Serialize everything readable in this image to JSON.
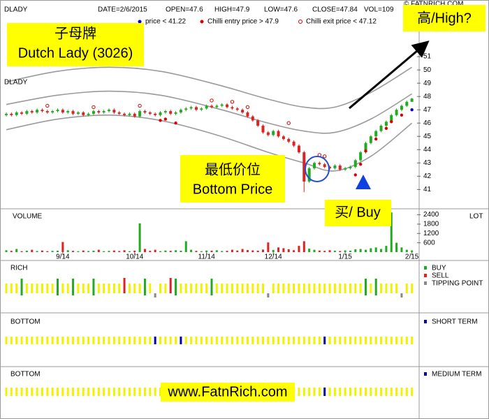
{
  "chart_data": {
    "type": "candlestick",
    "symbol": "DLADY",
    "symbol_label": "DLADY",
    "date": "DATE=2/6/2015",
    "open_label": "OPEN=47.6",
    "high_label": "HIGH=47.9",
    "low_label": "LOW=47.6",
    "close_label": "CLOSE=47.84",
    "vol_label": "VOL=109",
    "copyright": "© FATNRICH.COM",
    "annotations": {
      "name_cn": "子母牌",
      "name_en": "Dutch Lady (3026)",
      "high": "高/High?",
      "bottom_cn": "最低价位",
      "bottom_en": "Bottom Price",
      "buy": "买/ Buy",
      "website": "www.FatnRich.com"
    },
    "categories": [
      null,
      null,
      null,
      null,
      null,
      null,
      null,
      null,
      null,
      null,
      null,
      "9/14",
      null,
      null,
      null,
      null,
      null,
      null,
      null,
      null,
      null,
      null,
      null,
      null,
      null,
      "10/14",
      null,
      null,
      null,
      null,
      null,
      null,
      null,
      null,
      null,
      null,
      null,
      null,
      null,
      "11/14",
      null,
      null,
      null,
      null,
      null,
      null,
      null,
      null,
      null,
      null,
      null,
      null,
      "12/14",
      null,
      null,
      null,
      null,
      null,
      null,
      null,
      null,
      null,
      null,
      null,
      null,
      null,
      "1/15",
      null,
      null,
      null,
      null,
      null,
      null,
      null,
      null,
      null,
      null,
      null,
      null,
      "2/15"
    ],
    "open": [
      46.6,
      46.7,
      46.6,
      46.8,
      46.7,
      46.9,
      46.8,
      47.0,
      46.9,
      46.8,
      46.9,
      47.0,
      46.8,
      46.9,
      46.7,
      46.8,
      46.6,
      46.7,
      46.9,
      46.8,
      46.9,
      47.0,
      46.8,
      46.7,
      46.6,
      46.7,
      46.5,
      46.9,
      46.8,
      46.7,
      46.6,
      46.8,
      46.9,
      46.7,
      46.8,
      47.0,
      47.1,
      47.2,
      47.0,
      47.1,
      47.3,
      47.2,
      47.3,
      47.4,
      47.2,
      47.1,
      47.0,
      46.8,
      46.5,
      46.2,
      45.8,
      45.3,
      45.1,
      45.4,
      45.0,
      44.8,
      44.6,
      44.3,
      43.8,
      41.6,
      42.6,
      43.0,
      42.9,
      42.7,
      42.6,
      42.8,
      42.5,
      42.6,
      42.7,
      43.2,
      43.8,
      44.5,
      45.0,
      45.4,
      45.8,
      46.1,
      46.6,
      47.0,
      47.3,
      47.6
    ],
    "high": [
      46.8,
      46.8,
      46.9,
      46.9,
      47.0,
      47.0,
      47.1,
      47.1,
      47.0,
      47.0,
      47.1,
      47.1,
      47.0,
      47.0,
      46.9,
      46.9,
      46.8,
      47.0,
      47.0,
      47.0,
      47.1,
      47.1,
      46.9,
      46.8,
      46.8,
      46.8,
      47.0,
      47.0,
      46.9,
      46.8,
      46.9,
      47.0,
      47.0,
      46.9,
      47.1,
      47.2,
      47.3,
      47.3,
      47.2,
      47.4,
      47.4,
      47.4,
      47.5,
      47.5,
      47.3,
      47.2,
      47.1,
      46.9,
      46.6,
      46.3,
      45.9,
      45.4,
      45.5,
      45.5,
      45.1,
      44.9,
      44.7,
      44.4,
      43.9,
      42.7,
      43.1,
      43.1,
      43.0,
      42.8,
      42.9,
      42.9,
      42.7,
      42.8,
      43.3,
      43.9,
      44.6,
      45.1,
      45.5,
      45.9,
      46.2,
      46.7,
      47.1,
      47.4,
      47.7,
      47.9
    ],
    "low": [
      46.5,
      46.5,
      46.5,
      46.6,
      46.6,
      46.7,
      46.7,
      46.8,
      46.7,
      46.7,
      46.8,
      46.7,
      46.7,
      46.6,
      46.6,
      46.5,
      46.5,
      46.6,
      46.7,
      46.7,
      46.8,
      46.7,
      46.6,
      46.5,
      46.5,
      46.4,
      46.4,
      46.7,
      46.6,
      46.5,
      46.5,
      46.7,
      46.6,
      46.6,
      46.7,
      46.9,
      47.0,
      46.9,
      46.9,
      47.0,
      47.1,
      47.1,
      47.2,
      47.1,
      47.0,
      46.9,
      46.7,
      46.4,
      46.1,
      45.7,
      45.2,
      45.0,
      45.0,
      44.9,
      44.7,
      44.5,
      44.2,
      43.7,
      40.8,
      41.5,
      42.5,
      42.8,
      42.6,
      42.5,
      42.5,
      42.4,
      42.4,
      42.5,
      42.6,
      43.1,
      43.7,
      44.4,
      44.9,
      45.3,
      45.7,
      46.0,
      46.5,
      46.9,
      47.2,
      47.6
    ],
    "close": [
      46.7,
      46.6,
      46.8,
      46.7,
      46.9,
      46.8,
      47.0,
      46.9,
      46.8,
      46.9,
      47.0,
      46.8,
      46.9,
      46.7,
      46.8,
      46.6,
      46.7,
      46.9,
      46.8,
      46.9,
      47.0,
      46.8,
      46.7,
      46.6,
      46.7,
      46.5,
      46.9,
      46.8,
      46.7,
      46.6,
      46.8,
      46.9,
      46.7,
      46.8,
      47.0,
      47.1,
      47.2,
      47.0,
      47.1,
      47.3,
      47.2,
      47.3,
      47.4,
      47.2,
      47.1,
      47.0,
      46.8,
      46.5,
      46.2,
      45.8,
      45.3,
      45.1,
      45.4,
      45.0,
      44.8,
      44.6,
      44.3,
      43.8,
      41.6,
      42.6,
      43.0,
      42.9,
      42.7,
      42.6,
      42.8,
      42.5,
      42.6,
      42.7,
      43.2,
      43.8,
      44.5,
      45.0,
      45.4,
      45.8,
      46.1,
      46.6,
      47.0,
      47.3,
      47.6,
      47.84
    ],
    "up_color": "#22aa22",
    "down_color": "#dd2222",
    "flat_color": "#000000",
    "ylim": [
      39.6,
      55
    ],
    "yticks": [
      41,
      42,
      43,
      44,
      45,
      46,
      47,
      48,
      49,
      50,
      51
    ],
    "bands": [
      {
        "color": "#9a9a9a",
        "x": [
          0,
          10,
          20,
          30,
          41,
          51,
          58,
          64,
          71,
          79
        ],
        "values": [
          49.1,
          49.9,
          50.2,
          49.9,
          48.9,
          47.8,
          47.2,
          47.2,
          48.3,
          50.2
        ]
      },
      {
        "color": "#9a9a9a",
        "x": [
          0,
          10,
          20,
          30,
          41,
          51,
          58,
          64,
          71,
          79
        ],
        "values": [
          47.4,
          48.1,
          48.4,
          48.1,
          47.1,
          46.0,
          45.4,
          45.3,
          46.3,
          48.2
        ]
      },
      {
        "color": "#9a9a9a",
        "x": [
          0,
          10,
          20,
          30,
          41,
          51,
          58,
          64,
          71,
          79
        ],
        "values": [
          45.5,
          46.3,
          46.6,
          46.2,
          45.1,
          43.8,
          43.0,
          42.4,
          43.5,
          46.0
        ]
      }
    ],
    "markers": [
      {
        "name": "price < 41.22",
        "color": "#0000cc",
        "style": "dot",
        "x": [
          79
        ],
        "values": [
          47.0
        ]
      },
      {
        "name": "Chilli entry price > 47.9",
        "color": "#dd0000",
        "style": "dot",
        "x": [
          30,
          31,
          33,
          68,
          69,
          70,
          72,
          74,
          75,
          77
        ],
        "values": [
          46.2,
          46.3,
          46.0,
          42.1,
          42.9,
          43.9,
          44.8,
          45.6,
          46.1,
          46.6
        ]
      },
      {
        "name": "Chilli exit price < 47.12",
        "color": "#dd0000",
        "style": "circle",
        "x": [
          8,
          17,
          26,
          40,
          44,
          47,
          55,
          61,
          62
        ],
        "values": [
          47.3,
          47.2,
          47.3,
          47.7,
          47.6,
          47.2,
          46.0,
          43.6,
          43.5
        ]
      }
    ],
    "volume": {
      "label": "VOLUME",
      "unit_label": "LOT",
      "values": [
        120,
        80,
        200,
        60,
        90,
        150,
        70,
        100,
        60,
        80,
        90,
        650,
        120,
        80,
        60,
        100,
        70,
        90,
        150,
        60,
        80,
        100,
        70,
        120,
        60,
        90,
        1850,
        200,
        80,
        150,
        60,
        100,
        80,
        120,
        90,
        700,
        150,
        80,
        60,
        100,
        90,
        120,
        70,
        80,
        150,
        100,
        200,
        130,
        110,
        90,
        160,
        620,
        140,
        300,
        250,
        180,
        120,
        400,
        700,
        220,
        150,
        100,
        80,
        120,
        90,
        70,
        110,
        90,
        180,
        200,
        150,
        250,
        300,
        200,
        400,
        2550,
        600,
        300,
        150,
        109
      ],
      "ylim": [
        0,
        2650
      ],
      "yticks": [
        600,
        1200,
        1800,
        2400
      ]
    },
    "rich": {
      "label": "RICH",
      "strip_color": "#f2f200",
      "signals": [
        {
          "name": "BUY",
          "color": "#22aa22",
          "x": [
            3,
            10,
            13,
            17,
            27,
            33,
            40,
            70,
            72
          ]
        },
        {
          "name": "SELL",
          "color": "#dd2222",
          "x": [
            23,
            32
          ]
        },
        {
          "name": "TIPPING POINT",
          "color": "#888888",
          "x": [
            29,
            51,
            77
          ]
        }
      ]
    },
    "bottom_short": {
      "label": "BOTTOM",
      "strip_color": "#f2f200",
      "signal": {
        "name": "SHORT TERM",
        "color": "#0000aa",
        "x": [
          29,
          34,
          62
        ]
      }
    },
    "bottom_medium": {
      "label": "BOTTOM",
      "strip_color": "#f2f200",
      "signal": {
        "name": "MEDIUM TERM",
        "color": "#0000aa",
        "x": [
          62
        ]
      }
    }
  }
}
